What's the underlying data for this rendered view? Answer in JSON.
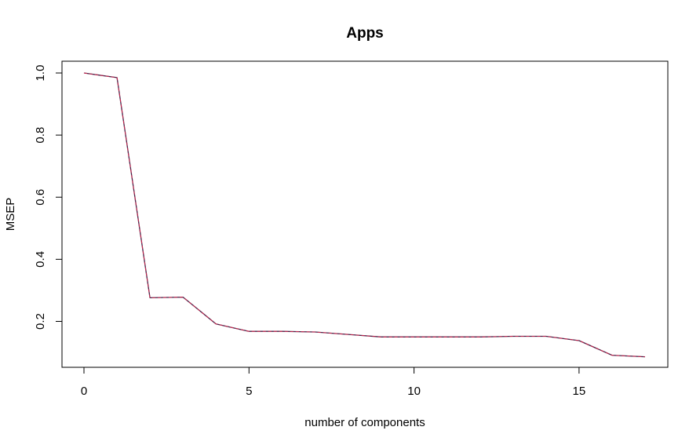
{
  "chart_data": {
    "type": "line",
    "title": "Apps",
    "xlabel": "number of components",
    "ylabel": "MSEP",
    "xlim": [
      0,
      17
    ],
    "ylim": [
      0.085,
      1.0
    ],
    "x_ticks": [
      0,
      5,
      10,
      15
    ],
    "y_ticks": [
      0.2,
      0.4,
      0.6,
      0.8,
      1.0
    ],
    "x_tick_labels": [
      "0",
      "5",
      "10",
      "15"
    ],
    "y_tick_labels": [
      "0.2",
      "0.4",
      "0.6",
      "0.8",
      "1.0"
    ],
    "grid": false,
    "legend": "none",
    "series": [
      {
        "x": [
          0,
          1,
          2,
          3,
          4,
          5,
          6,
          7,
          8,
          9,
          10,
          11,
          12,
          13,
          14,
          15,
          16,
          17
        ],
        "values": [
          1.0,
          0.985,
          0.276,
          0.278,
          0.192,
          0.168,
          0.168,
          0.166,
          0.158,
          0.15,
          0.15,
          0.15,
          0.15,
          0.152,
          0.152,
          0.138,
          0.091,
          0.086
        ],
        "color": "#4a2045",
        "style": "solid"
      },
      {
        "x": [
          0,
          1,
          2,
          3,
          4,
          5,
          6,
          7,
          8,
          9,
          10,
          11,
          12,
          13,
          14,
          15,
          16,
          17
        ],
        "values": [
          1.0,
          0.985,
          0.276,
          0.278,
          0.192,
          0.168,
          0.168,
          0.166,
          0.158,
          0.15,
          0.15,
          0.15,
          0.15,
          0.152,
          0.152,
          0.138,
          0.091,
          0.086
        ],
        "color": "#e0204a",
        "style": "dashed"
      }
    ]
  }
}
